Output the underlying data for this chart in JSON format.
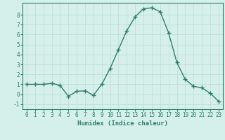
{
  "x": [
    0,
    1,
    2,
    3,
    4,
    5,
    6,
    7,
    8,
    9,
    10,
    11,
    12,
    13,
    14,
    15,
    16,
    17,
    18,
    19,
    20,
    21,
    22,
    23
  ],
  "y": [
    1.0,
    1.0,
    1.0,
    1.1,
    0.9,
    -0.2,
    0.3,
    0.35,
    -0.1,
    1.0,
    2.6,
    4.5,
    6.4,
    7.8,
    8.6,
    8.7,
    8.3,
    6.2,
    3.2,
    1.5,
    0.8,
    0.65,
    0.1,
    -0.7
  ],
  "line_color": "#2e7d6e",
  "marker": "+",
  "marker_size": 4,
  "bg_color": "#d5f0eb",
  "grid_major_color": "#c0ddd8",
  "grid_minor_color": "#daeee9",
  "xlabel": "Humidex (Indice chaleur)",
  "xlim": [
    -0.5,
    23.5
  ],
  "ylim": [
    -1.5,
    9.2
  ],
  "yticks": [
    -1,
    0,
    1,
    2,
    3,
    4,
    5,
    6,
    7,
    8
  ],
  "xticks": [
    0,
    1,
    2,
    3,
    4,
    5,
    6,
    7,
    8,
    9,
    10,
    11,
    12,
    13,
    14,
    15,
    16,
    17,
    18,
    19,
    20,
    21,
    22,
    23
  ],
  "axis_color": "#2e7d6e",
  "tick_color": "#2e7d6e",
  "label_color": "#2e7d6e",
  "xlabel_fontsize": 6.5,
  "tick_fontsize": 5.5,
  "linewidth": 1.0,
  "marker_color": "#2e7d6e"
}
